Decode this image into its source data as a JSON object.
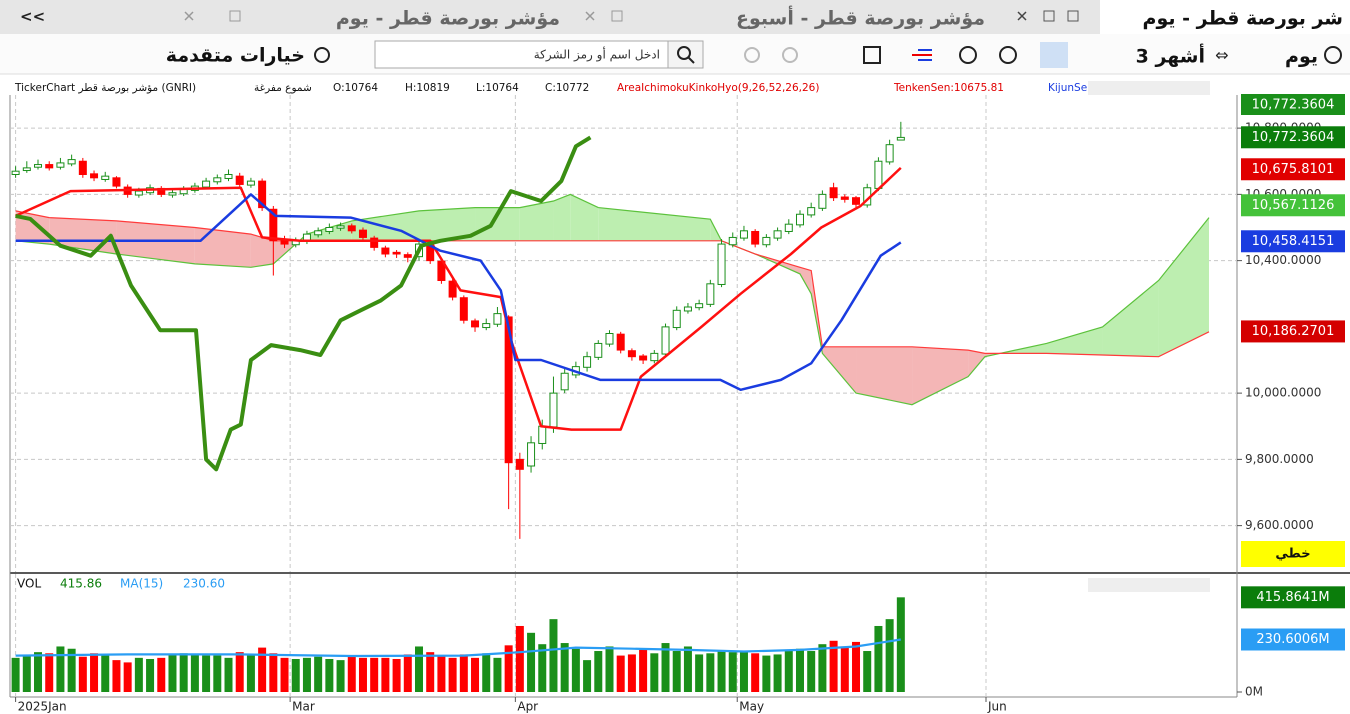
{
  "tabs": [
    "شر بورصة قطر - يوم",
    "مؤشر بورصة قطر - أسبوع",
    "مؤشر بورصة قطر - يوم",
    "<<"
  ],
  "toolbar": {
    "period": "يوم",
    "range": "3 أشهر",
    "search_placeholder": "ادخل اسم أو رمز الشركة",
    "advanced": "خيارات متقدمة"
  },
  "info": {
    "symbol": "TickerChart مؤشر بورصة قطر (GNRI)",
    "style": "شموع مفرغة",
    "open": "O:10764",
    "high": "H:10819",
    "low": "L:10764",
    "close": "C:10772",
    "indicator": "AreaIchimokuKinkoHyo(9,26,52,26,26)",
    "tenkan": "TenkenSen:10675.81",
    "kijun": "KijunSe",
    "last_price": "10,772.3604",
    "scale_mode": "خطي"
  },
  "volume_info": {
    "name": "VOL",
    "value": "415.86",
    "ma_name": "MA(15)",
    "ma_value": "230.60"
  },
  "chart_data": [
    {
      "type": "candlestick",
      "up_color": "#1a8f1a",
      "down_color": "#ff0000",
      "xlim": [
        -0.5,
        109
      ],
      "xticks": [
        {
          "value": 0,
          "label": "2025Jan"
        },
        {
          "value": 24.5,
          "label": "Mar"
        },
        {
          "value": 44.6,
          "label": "Apr"
        },
        {
          "value": 64.4,
          "label": "May"
        },
        {
          "value": 86.6,
          "label": "Jun"
        }
      ],
      "ylim": [
        9460,
        10900
      ],
      "yticks": [
        {
          "value": 9600,
          "label": "9,600.0000"
        },
        {
          "value": 9800,
          "label": "9,800.0000"
        },
        {
          "value": 10000,
          "label": "10,000.0000"
        },
        {
          "value": 10400,
          "label": "10,400.0000"
        },
        {
          "value": 10600,
          "label": "10,600.0000"
        },
        {
          "value": 10800,
          "label": "10,800.0000"
        }
      ],
      "grid": true,
      "open": [
        10660,
        10672,
        10682,
        10690,
        10682,
        10692,
        10700,
        10662,
        10645,
        10650,
        10622,
        10598,
        10605,
        10618,
        10598,
        10602,
        10612,
        10622,
        10638,
        10648,
        10655,
        10628,
        10640,
        10555,
        10462,
        10448,
        10458,
        10478,
        10488,
        10498,
        10505,
        10492,
        10468,
        10438,
        10425,
        10418,
        10412,
        10448,
        10398,
        10338,
        10288,
        10218,
        10198,
        10208,
        10230,
        9800,
        9780,
        9848,
        9898,
        10010,
        10055,
        10078,
        10108,
        10148,
        10178,
        10128,
        10112,
        10098,
        10118,
        10198,
        10248,
        10258,
        10268,
        10328,
        10448,
        10468,
        10488,
        10448,
        10468,
        10488,
        10508,
        10538,
        10558,
        10620,
        10592,
        10590,
        10568,
        10618,
        10698,
        10764
      ],
      "high": [
        10685,
        10700,
        10705,
        10700,
        10710,
        10720,
        10710,
        10672,
        10668,
        10655,
        10630,
        10620,
        10630,
        10625,
        10615,
        10625,
        10635,
        10650,
        10660,
        10675,
        10665,
        10650,
        10648,
        10565,
        10475,
        10470,
        10490,
        10500,
        10512,
        10515,
        10512,
        10500,
        10475,
        10445,
        10432,
        10425,
        10460,
        10455,
        10405,
        10345,
        10295,
        10225,
        10225,
        10260,
        10235,
        9820,
        9870,
        9920,
        10050,
        10075,
        10095,
        10125,
        10160,
        10190,
        10185,
        10135,
        10118,
        10130,
        10210,
        10262,
        10272,
        10282,
        10342,
        10465,
        10485,
        10505,
        10495,
        10480,
        10500,
        10525,
        10552,
        10575,
        10612,
        10635,
        10600,
        10595,
        10632,
        10712,
        10765,
        10819
      ],
      "low": [
        10650,
        10665,
        10675,
        10672,
        10675,
        10685,
        10650,
        10640,
        10638,
        10618,
        10590,
        10590,
        10598,
        10592,
        10590,
        10595,
        10605,
        10615,
        10630,
        10640,
        10622,
        10620,
        10550,
        10355,
        10438,
        10440,
        10450,
        10470,
        10480,
        10490,
        10482,
        10462,
        10430,
        10410,
        10408,
        10395,
        10400,
        10390,
        10330,
        10280,
        10210,
        10185,
        10190,
        10200,
        9650,
        9560,
        9760,
        9830,
        9880,
        10000,
        10045,
        10065,
        10100,
        10140,
        10120,
        10098,
        10088,
        10090,
        10110,
        10190,
        10240,
        10250,
        10260,
        10320,
        10440,
        10460,
        10440,
        10440,
        10460,
        10480,
        10500,
        10530,
        10550,
        10580,
        10575,
        10560,
        10560,
        10610,
        10690,
        10764
      ],
      "close": [
        10670,
        10680,
        10690,
        10680,
        10695,
        10705,
        10660,
        10650,
        10655,
        10625,
        10600,
        10610,
        10620,
        10600,
        10605,
        10615,
        10625,
        10640,
        10650,
        10660,
        10630,
        10640,
        10560,
        10460,
        10450,
        10460,
        10480,
        10490,
        10500,
        10505,
        10490,
        10470,
        10440,
        10420,
        10420,
        10410,
        10450,
        10400,
        10340,
        10290,
        10220,
        10200,
        10210,
        10240,
        9790,
        9770,
        9850,
        9900,
        10000,
        10060,
        10080,
        10110,
        10150,
        10180,
        10130,
        10110,
        10100,
        10120,
        10200,
        10250,
        10260,
        10270,
        10330,
        10450,
        10470,
        10490,
        10450,
        10470,
        10490,
        10510,
        10540,
        10560,
        10600,
        10590,
        10585,
        10570,
        10620,
        10700,
        10750,
        10772
      ],
      "cloud": {
        "x": [
          0,
          3,
          9,
          16,
          21,
          23,
          26,
          30,
          36,
          41,
          45,
          48,
          49.5,
          52,
          62,
          63,
          66,
          70,
          71,
          72,
          75,
          80,
          85,
          86.5,
          92,
          97,
          102,
          106.5
        ],
        "span_a": [
          10460,
          10450,
          10420,
          10390,
          10380,
          10390,
          10480,
          10520,
          10550,
          10560,
          10560,
          10580,
          10600,
          10560,
          10525,
          10460,
          10420,
          10360,
          10300,
          10120,
          10000,
          9965,
          10050,
          10110,
          10150,
          10200,
          10340,
          10530
        ],
        "span_b": [
          10550,
          10530,
          10520,
          10500,
          10480,
          10460,
          10460,
          10460,
          10460,
          10460,
          10460,
          10460,
          10460,
          10460,
          10460,
          10460,
          10420,
          10380,
          10370,
          10140,
          10140,
          10140,
          10130,
          10120,
          10120,
          10115,
          10110,
          10185
        ],
        "span_a_color": "#5cc23c",
        "span_b_color": "#ff3b3b",
        "up_color": "#bdeeb0",
        "down_color": "#f4b6b6"
      },
      "series": [
        {
          "color": "#ff1010",
          "width": 2.5,
          "x": [
            0,
            4.9,
            20.1,
            22,
            25.4,
            37,
            39.7,
            43.3,
            44.2,
            46.9,
            49.6,
            54,
            55.8,
            61.2,
            64.7,
            69.2,
            71.9,
            75.4,
            79
          ],
          "values": [
            10535,
            10610,
            10620,
            10470,
            10460,
            10460,
            10310,
            10290,
            10160,
            9900,
            9890,
            9890,
            10050,
            10200,
            10300,
            10420,
            10500,
            10565,
            10680
          ]
        },
        {
          "color": "#1a3ce0",
          "width": 2.5,
          "x": [
            0,
            16.5,
            21,
            23.2,
            29.9,
            34.4,
            37.9,
            41.5,
            43.3,
            44.6,
            46.9,
            52.2,
            62.9,
            64.7,
            68.3,
            71,
            73.7,
            77.2,
            79
          ],
          "values": [
            10460,
            10460,
            10600,
            10535,
            10530,
            10490,
            10430,
            10400,
            10310,
            10100,
            10100,
            10040,
            10040,
            10010,
            10040,
            10090,
            10220,
            10415,
            10455
          ]
        },
        {
          "color": "#3a8e12",
          "width": 4,
          "x": [
            0,
            1.3,
            4,
            6.7,
            8.5,
            10.3,
            12.9,
            16.1,
            17,
            17.9,
            19.2,
            20.1,
            21,
            22.8,
            25.4,
            27.2,
            29,
            30.8,
            32.6,
            34.4,
            36.2,
            37.9,
            40.6,
            42.4,
            44.2,
            46.9,
            48.7,
            50,
            51.3
          ],
          "values": [
            10535,
            10526,
            10445,
            10415,
            10475,
            10325,
            10190,
            10190,
            9800,
            9770,
            9890,
            9905,
            10100,
            10145,
            10130,
            10115,
            10220,
            10250,
            10280,
            10325,
            10445,
            10460,
            10475,
            10505,
            10610,
            10580,
            10640,
            10745,
            10772
          ]
        }
      ],
      "value_tags": [
        {
          "value": 10772.3604,
          "label": "10,772.3604",
          "color": "#0b7d0b"
        },
        {
          "value": 10675.8101,
          "label": "10,675.8101",
          "color": "#e00000"
        },
        {
          "value": 10567.1126,
          "label": "10,567.1126",
          "color": "#44c23a"
        },
        {
          "value": 10458.4151,
          "label": "10,458.4151",
          "color": "#1a3ce0"
        },
        {
          "value": 10186.2701,
          "label": "10,186.2701",
          "color": "#d40000"
        }
      ]
    },
    {
      "type": "bar",
      "ylim": [
        0,
        470
      ],
      "yticks": [
        {
          "value": 0,
          "label": "0M"
        }
      ],
      "values": [
        150,
        160,
        175,
        170,
        200,
        190,
        155,
        170,
        165,
        140,
        130,
        150,
        145,
        150,
        165,
        170,
        165,
        160,
        160,
        150,
        175,
        165,
        195,
        170,
        150,
        145,
        150,
        155,
        145,
        140,
        155,
        150,
        150,
        150,
        145,
        165,
        200,
        175,
        160,
        150,
        165,
        150,
        170,
        150,
        205,
        290,
        260,
        210,
        320,
        215,
        190,
        140,
        180,
        200,
        160,
        165,
        185,
        170,
        215,
        180,
        200,
        165,
        170,
        180,
        175,
        175,
        170,
        160,
        165,
        185,
        190,
        180,
        210,
        225,
        200,
        220,
        180,
        290,
        320,
        415.86
      ],
      "ma": {
        "color": "#2a9df4",
        "x": [
          0,
          10,
          20,
          30,
          40,
          45,
          50,
          55,
          60,
          65,
          70,
          75,
          79
        ],
        "values": [
          160,
          165,
          165,
          158,
          160,
          175,
          195,
          190,
          185,
          178,
          185,
          200,
          230.6
        ]
      },
      "value_tags": [
        {
          "value": 415.8641,
          "label": "415.8641M",
          "color": "#0b7d0b"
        },
        {
          "value": 230.6006,
          "label": "230.6006M",
          "color": "#2a9df4"
        }
      ]
    }
  ]
}
